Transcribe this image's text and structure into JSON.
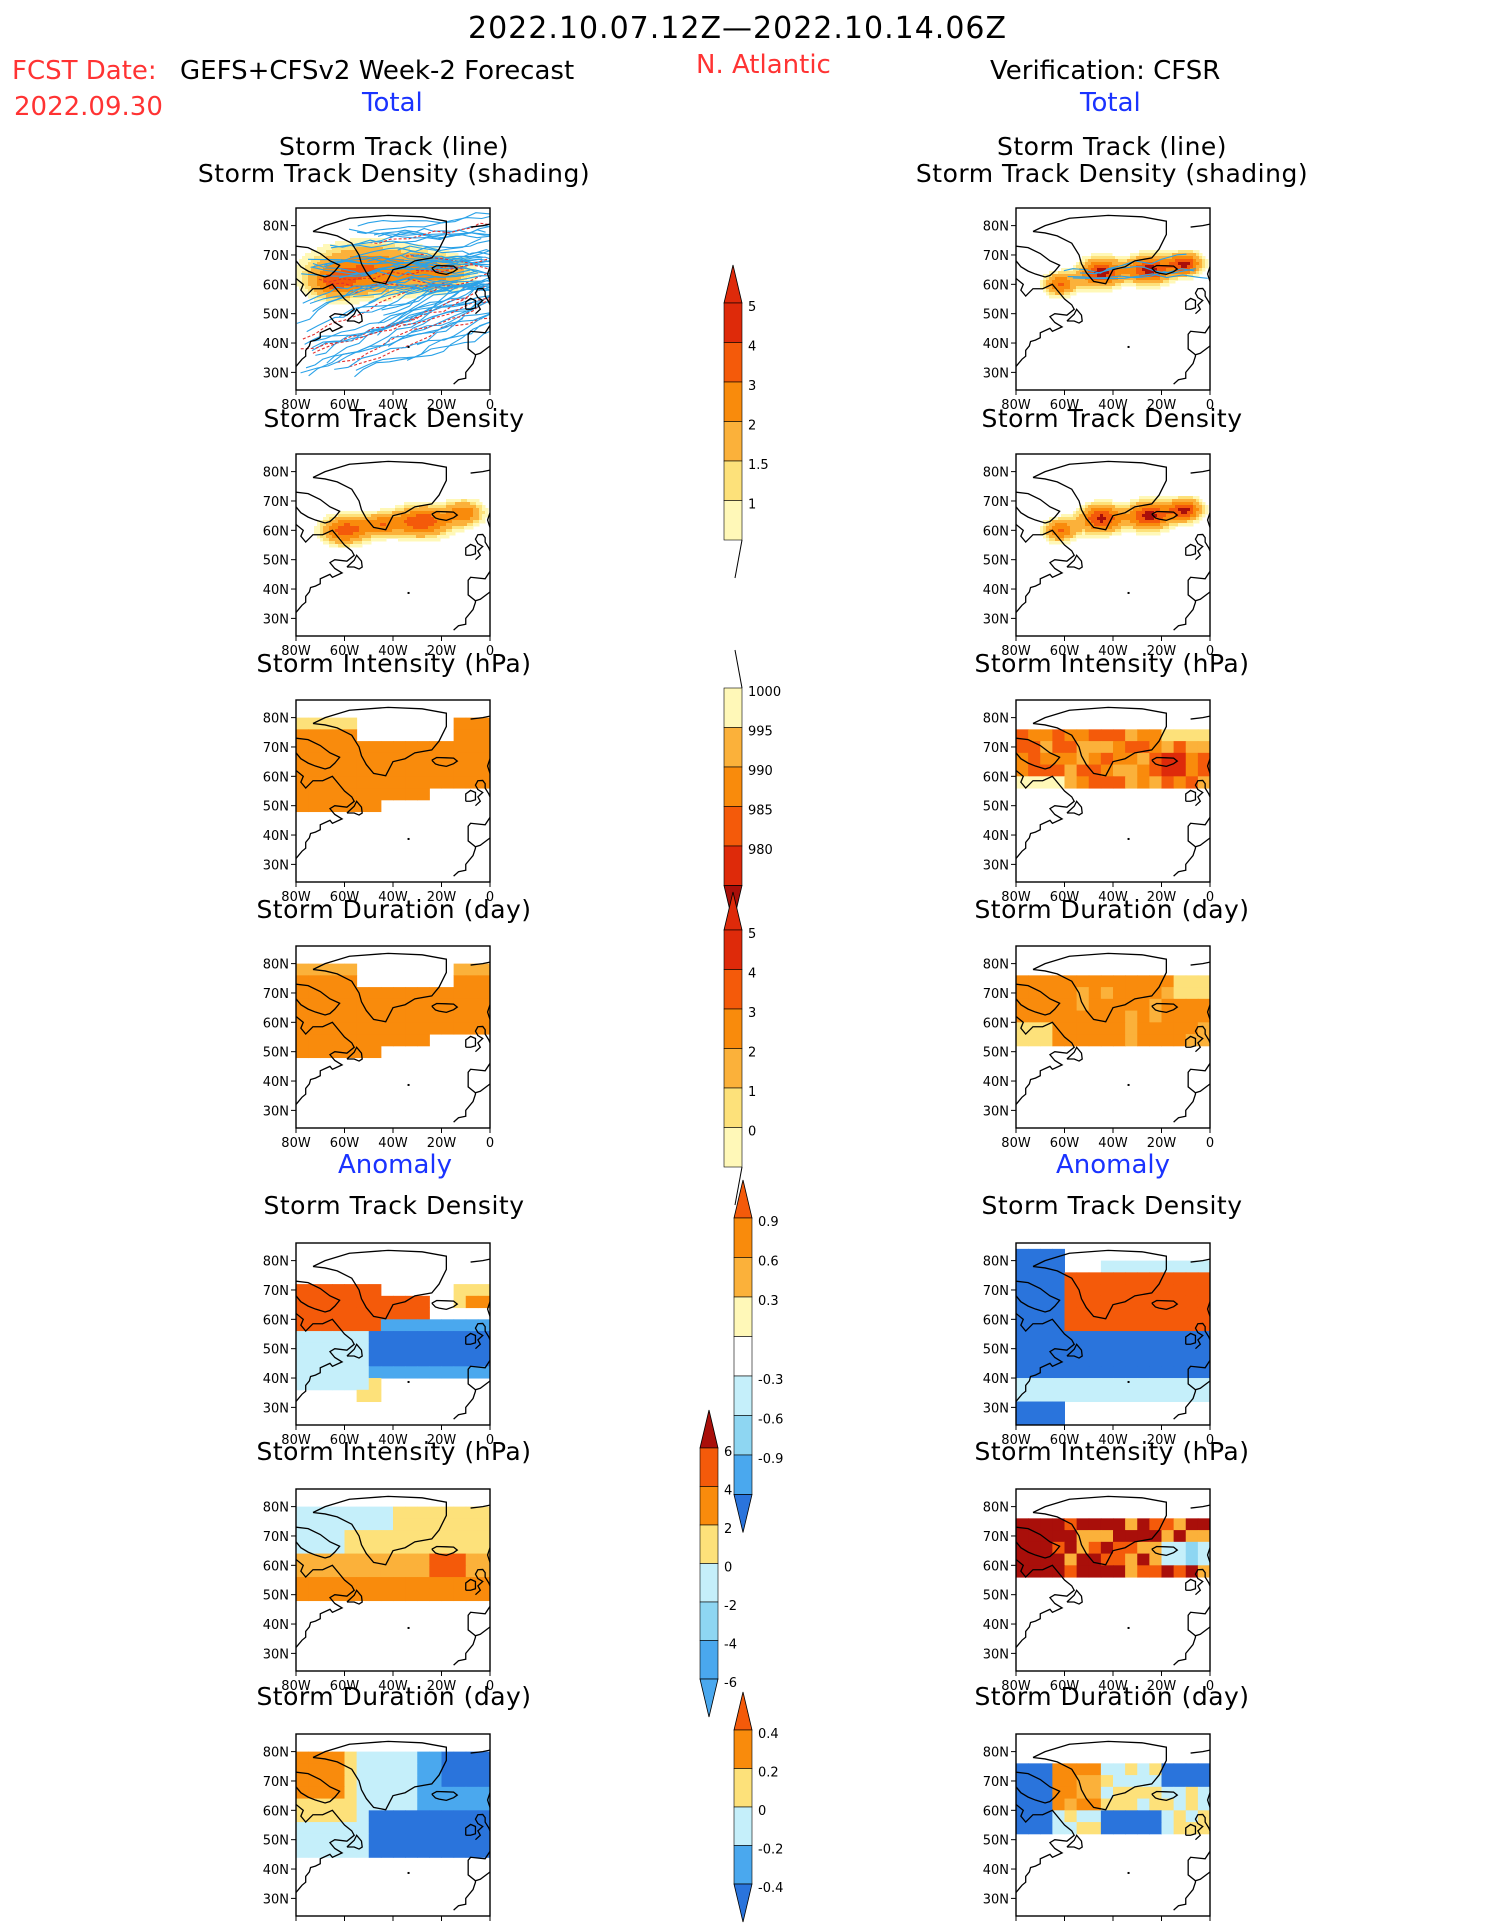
{
  "header": {
    "date_range": "2022.10.07.12Z—2022.10.14.06Z",
    "fcst_label": "FCST Date:",
    "model": "GEFS+CFSv2 Week-2 Forecast",
    "fcst_date": "2022.09.30",
    "region": "N. Atlantic",
    "verification": "Verification: CFSR",
    "left_section": "Total",
    "right_section": "Total",
    "left_anomaly": "Anomaly",
    "right_anomaly": "Anomaly"
  },
  "panel_titles": {
    "track_line": "Storm Track (line)",
    "track_shading": "Storm Track Density (shading)",
    "density": "Storm Track Density",
    "intensity": "Storm Intensity (hPa)",
    "duration": "Storm Duration (day)"
  },
  "axes": {
    "lat_labels": [
      "80N",
      "70N",
      "60N",
      "50N",
      "40N",
      "30N"
    ],
    "lon_labels": [
      "80W",
      "60W",
      "40W",
      "20W",
      "0"
    ]
  },
  "colorbars": {
    "density_total": [
      "1",
      "1.5",
      "2",
      "3",
      "4",
      "5"
    ],
    "intensity_total": [
      "1000",
      "995",
      "990",
      "985",
      "980"
    ],
    "duration_total": [
      "0",
      "1",
      "2",
      "3",
      "4",
      "5"
    ],
    "density_anom": [
      "0.9",
      "0.6",
      "0.3",
      "-0.3",
      "-0.6",
      "-0.9"
    ],
    "intensity_anom": [
      "6",
      "4",
      "2",
      "0",
      "-2",
      "-4",
      "-6"
    ],
    "duration_anom": [
      "0.4",
      "0.2",
      "0",
      "-0.2",
      "-0.4"
    ]
  },
  "colors": {
    "warm": [
      "#fff8b8",
      "#fde17a",
      "#fbb13a",
      "#f98b0c",
      "#f45a0a",
      "#de2a0a",
      "#a90f0a"
    ],
    "cool": [
      "#c5effa",
      "#8ed6f2",
      "#4aa8ee",
      "#2a74dc",
      "#1a4fc7"
    ],
    "track_line": "#2aa2e8",
    "track_red": "#e03030"
  }
}
